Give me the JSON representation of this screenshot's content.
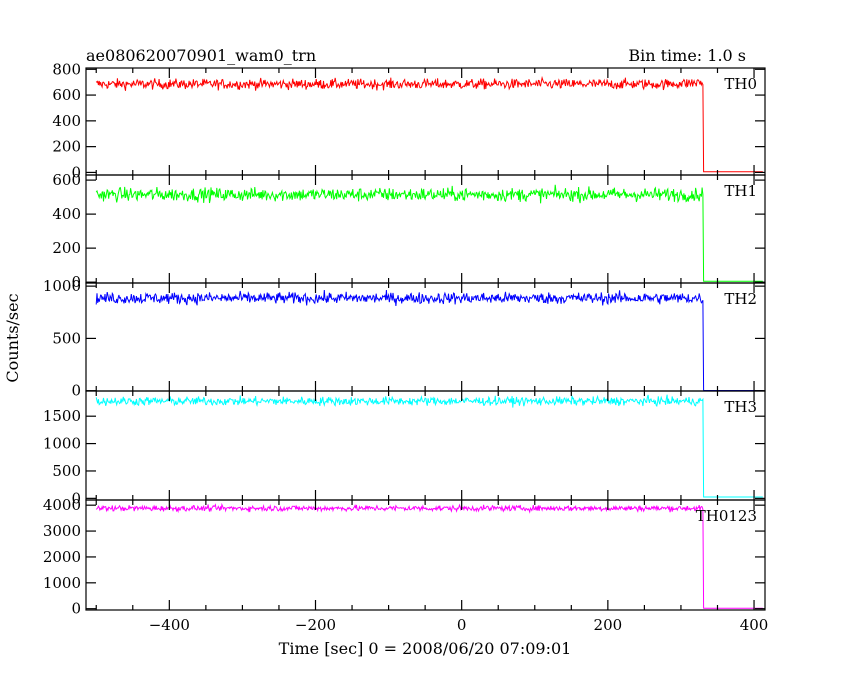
{
  "chart_data": {
    "type": "line",
    "title": "ae080620070901_wam0_trn",
    "bin_time": "Bin time: 1.0 s",
    "xlabel": "Time [sec] 0 = 2008/06/20 07:09:01",
    "ylabel": "Counts/sec",
    "xlim": [
      -514,
      415
    ],
    "x_ticks": [
      -400,
      -200,
      0,
      200,
      400
    ],
    "x_tick_labels": [
      "−400",
      "−200",
      "0",
      "200",
      "400"
    ],
    "drop_time": 330,
    "grid": false,
    "panels": [
      {
        "name": "TH0",
        "color": "#ff0000",
        "ylim": [
          -20,
          810
        ],
        "y_ticks": [
          0,
          200,
          400,
          600,
          800
        ],
        "mean": 685,
        "noise": 20,
        "after_drop": 5
      },
      {
        "name": "TH1",
        "color": "#00ff00",
        "ylim": [
          -5,
          630
        ],
        "y_ticks": [
          0,
          200,
          400,
          600
        ],
        "mean": 515,
        "noise": 20,
        "after_drop": 5
      },
      {
        "name": "TH2",
        "color": "#0000ff",
        "ylim": [
          -3,
          1030
        ],
        "y_ticks": [
          0,
          500,
          1000
        ],
        "mean": 885,
        "noise": 28,
        "after_drop": 2
      },
      {
        "name": "TH3",
        "color": "#00ffff",
        "ylim": [
          -30,
          1960
        ],
        "y_ticks": [
          0,
          500,
          1000,
          1500
        ],
        "mean": 1775,
        "noise": 40,
        "after_drop": 25
      },
      {
        "name": "TH0123",
        "color": "#ff00ff",
        "ylim": [
          -50,
          4200
        ],
        "y_ticks": [
          0,
          1000,
          2000,
          3000,
          4000
        ],
        "mean": 3880,
        "noise": 55,
        "after_drop": 15
      }
    ]
  }
}
